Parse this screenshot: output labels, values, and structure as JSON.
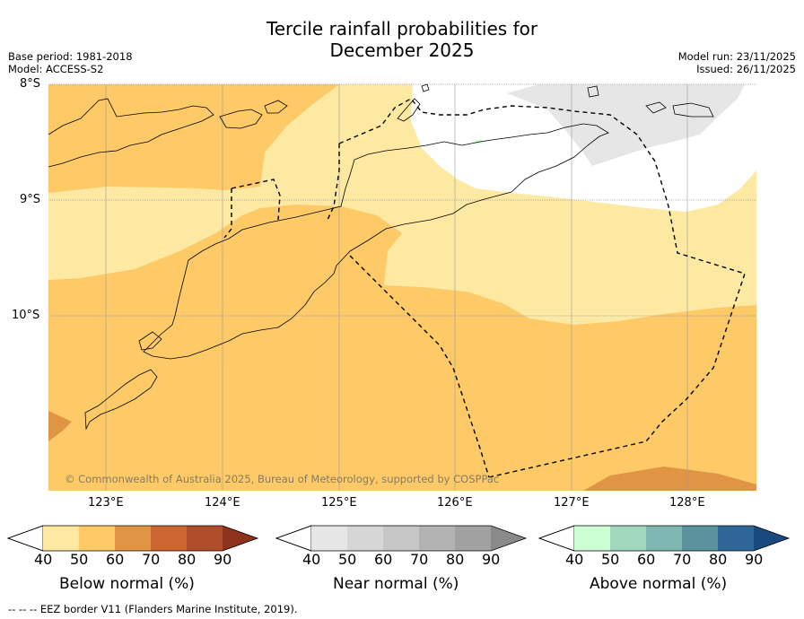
{
  "title_line1": "Tercile rainfall probabilities for",
  "title_line2": "December 2025",
  "base_period": "Base period: 1981-2018",
  "model": "Model: ACCESS-S2",
  "model_run": "Model run: 23/11/2025",
  "issued": "Issued: 26/11/2025",
  "lat_labels": [
    "8°S",
    "9°S",
    "10°S"
  ],
  "lon_labels": [
    "123°E",
    "124°E",
    "125°E",
    "126°E",
    "127°E",
    "128°E"
  ],
  "copyright": "© Commonwealth of Australia 2025, Bureau of Meteorology, supported by COSPPac",
  "colorbars": [
    {
      "title": "Below normal (%)",
      "ticks": [
        "40",
        "50",
        "60",
        "70",
        "80",
        "90"
      ],
      "colors": [
        "#fee9a2",
        "#fdca67",
        "#e09545",
        "#cc6630",
        "#b04d2a",
        "#8f321d"
      ]
    },
    {
      "title": "Near normal (%)",
      "ticks": [
        "40",
        "50",
        "60",
        "70",
        "80",
        "90"
      ],
      "colors": [
        "#e6e6e6",
        "#d6d6d6",
        "#c6c6c6",
        "#b3b3b3",
        "#a1a1a1",
        "#8a8a8a"
      ]
    },
    {
      "title": "Above normal (%)",
      "ticks": [
        "40",
        "50",
        "60",
        "70",
        "80",
        "90"
      ],
      "colors": [
        "#ccffd4",
        "#a1d9bd",
        "#7fb8b3",
        "#5a929e",
        "#2f6698",
        "#19497e"
      ]
    }
  ],
  "footer": "--  --  -- EEZ border V11 (Flanders Marine Institute, 2019).",
  "colors": {
    "below_50": "#fee9a2",
    "below_60": "#fdca67",
    "below_70": "#e09545",
    "near_50": "#e6e6e6",
    "above_50": "#ccffd4"
  }
}
